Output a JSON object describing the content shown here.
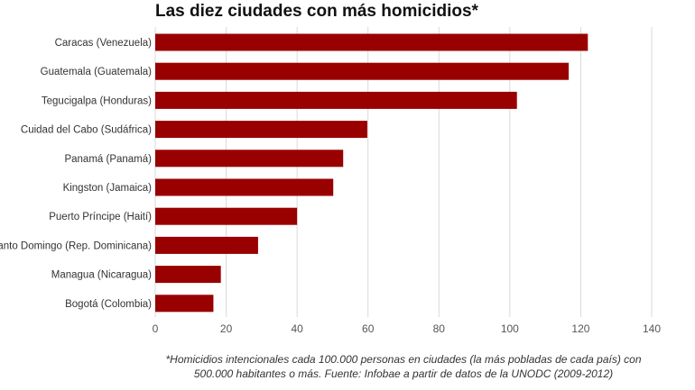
{
  "chart_data": {
    "type": "bar",
    "orientation": "horizontal",
    "title": "Las diez ciudades con más homicidios*",
    "categories": [
      "Caracas (Venezuela)",
      "Guatemala (Guatemala)",
      "Tegucigalpa (Honduras)",
      "Cuidad del Cabo (Sudáfrica)",
      "Panamá (Panamá)",
      "Kingston (Jamaica)",
      "Puerto Príncipe (Haití)",
      "Santo Domingo (Rep. Dominicana)",
      "Managua (Nicaragua)",
      "Bogotá (Colombia)"
    ],
    "values": [
      122,
      116.6,
      102,
      59.8,
      53,
      50.2,
      40,
      29,
      18.5,
      16.4
    ],
    "xlim": [
      0,
      140
    ],
    "xticks": [
      "0",
      "20",
      "40",
      "60",
      "80",
      "100",
      "120",
      "140"
    ],
    "grid": true,
    "bar_color": "#990000",
    "note": "*Homicidios intencionales cada 100.000 personas en ciudades (la más pobladas de cada país) con 500.000 habitantes o más. Fuente: Infobae a partir de datos de la UNODC (2009-2012)"
  }
}
